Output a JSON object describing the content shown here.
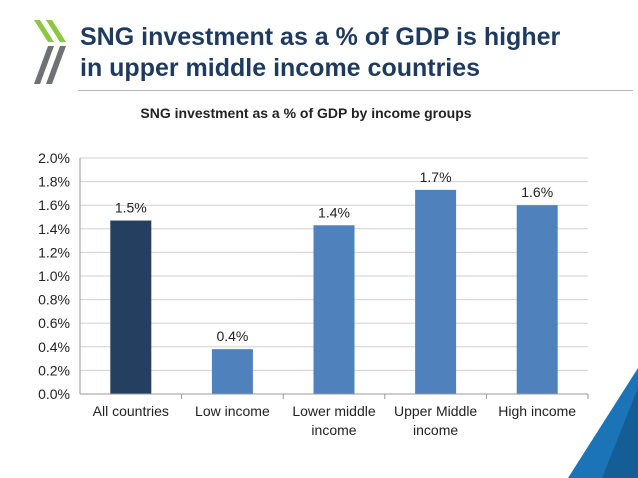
{
  "slide": {
    "title_line1": "SNG investment as a % of GDP is higher",
    "title_line2": "in upper middle income countries"
  },
  "colors": {
    "title": "#1f3a5f",
    "logo_green": "#8dc63f",
    "logo_gray": "#6f7275",
    "corner_blue": "#1b73b8",
    "bar_highlight": "#243f60",
    "bar_default": "#4f81bd"
  },
  "chart_data": {
    "type": "bar",
    "title": "SNG investment as a % of GDP by income groups",
    "categories": [
      [
        "All countries"
      ],
      [
        "Low income"
      ],
      [
        "Lower middle",
        "income"
      ],
      [
        "Upper Middle",
        "income"
      ],
      [
        "High income"
      ]
    ],
    "values": [
      1.47,
      0.38,
      1.43,
      1.73,
      1.6
    ],
    "data_labels": [
      "1.5%",
      "0.4%",
      "1.4%",
      "1.7%",
      "1.6%"
    ],
    "highlight_index": 0,
    "ylim": [
      0,
      2.0
    ],
    "yticks": [
      "0.0%",
      "0.2%",
      "0.4%",
      "0.6%",
      "0.8%",
      "1.0%",
      "1.2%",
      "1.4%",
      "1.6%",
      "1.8%",
      "2.0%"
    ],
    "grid": true,
    "xlabel": "",
    "ylabel": ""
  }
}
